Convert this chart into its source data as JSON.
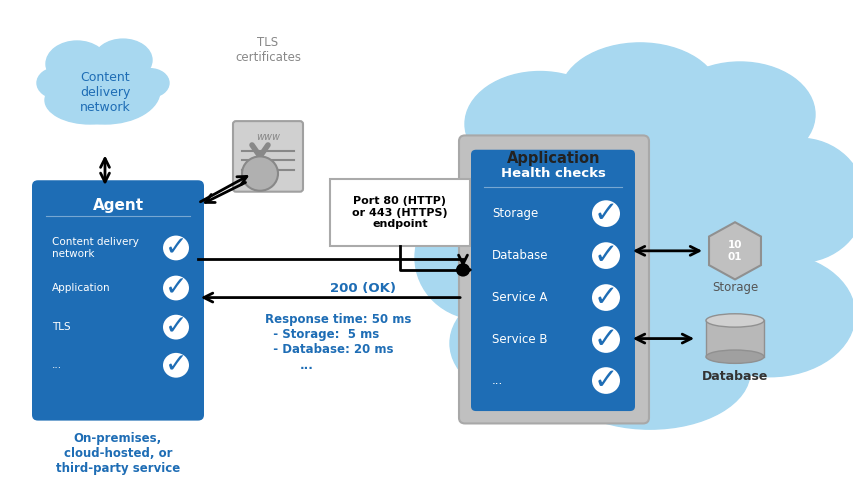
{
  "bg_color": "#ffffff",
  "cloud_light": "#a8d8f0",
  "agent_blue": "#1e6db5",
  "health_blue": "#1e6db5",
  "gray_outer": "#b8b8b8",
  "text_blue": "#1e6db5",
  "text_white": "#ffffff",
  "text_black": "#000000",
  "text_gray": "#888888",
  "agent_label": "Agent",
  "agent_items": [
    "Content delivery\nnetwork",
    "Application",
    "TLS",
    "..."
  ],
  "health_title": "Health checks",
  "health_items": [
    "Storage",
    "Database",
    "Service A",
    "Service B",
    "..."
  ],
  "app_label": "Application",
  "cdn_label": "Content\ndelivery\nnetwork",
  "tls_label": "TLS\ncertificates",
  "port_label": "Port 80 (HTTP)\nor 443 (HTTPS)\nendpoint",
  "ok_label": "200 (OK)",
  "response_line1": "Response time: 50 ms",
  "response_line2": "  - Storage:  5 ms",
  "response_line3": "  - Database: 20 ms",
  "response_line4": "       ...",
  "onprem_label": "On-premises,\ncloud-hosted, or\nthird-party service",
  "storage_label": "Storage",
  "database_label": "Database"
}
